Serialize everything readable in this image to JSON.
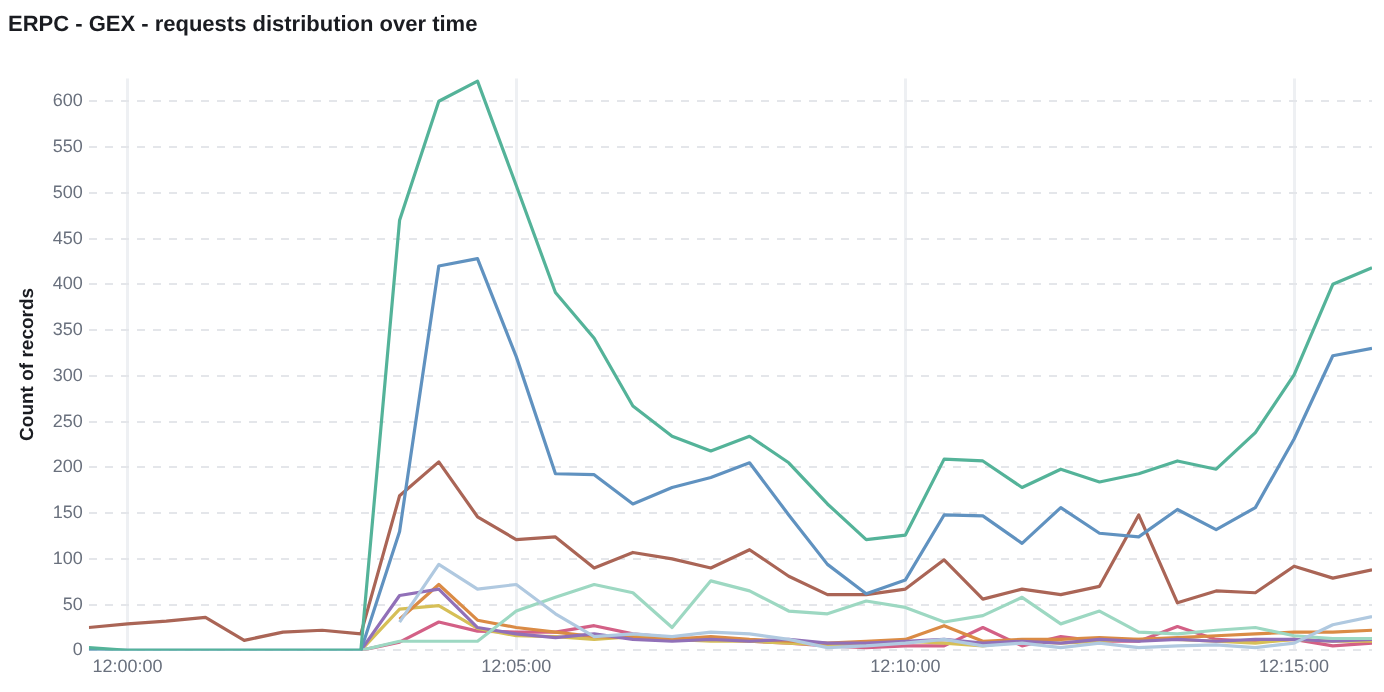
{
  "chart_data": {
    "type": "line",
    "title": "ERPC - GEX - requests distribution over time",
    "ylabel": "Count of records",
    "x": [
      11.9917,
      12,
      12.0083,
      12.0167,
      12.025,
      12.0333,
      12.0417,
      12.05,
      12.0583,
      12.0667,
      12.075,
      12.0833,
      12.0917,
      12.1,
      12.1083,
      12.1167,
      12.125,
      12.1333,
      12.1417,
      12.15,
      12.1583,
      12.1667,
      12.175,
      12.1833,
      12.1917,
      12.2,
      12.2083,
      12.2167,
      12.225,
      12.2333,
      12.2417,
      12.25,
      12.2583,
      12.2667
    ],
    "xlim": [
      11.9917,
      12.2667
    ],
    "xticks": [
      {
        "value": 12,
        "label": "12:00:00"
      },
      {
        "value": 12.0833,
        "label": "12:05:00"
      },
      {
        "value": 12.1667,
        "label": "12:10:00"
      },
      {
        "value": 12.25,
        "label": "12:15:00"
      }
    ],
    "ylim": [
      0,
      625
    ],
    "yticks": [
      0,
      50,
      100,
      150,
      200,
      250,
      300,
      350,
      400,
      450,
      500,
      550,
      600
    ],
    "grid": true,
    "legend": false,
    "marker": "none",
    "line_style": "solid",
    "series": [
      {
        "color": "#54b399",
        "values": [
          3,
          0,
          0,
          0,
          0,
          0,
          0,
          0,
          470,
          600,
          622,
          508,
          391,
          341,
          267,
          234,
          218,
          234,
          205,
          160,
          121,
          126,
          209,
          207,
          178,
          198,
          184,
          193,
          207,
          198,
          238,
          301,
          400,
          418
        ]
      },
      {
        "color": "#6092c0",
        "values": [
          0,
          0,
          0,
          0,
          0,
          0,
          0,
          0,
          130,
          420,
          428,
          321,
          193,
          192,
          160,
          178,
          189,
          205,
          148,
          94,
          62,
          77,
          148,
          147,
          117,
          156,
          128,
          124,
          154,
          132,
          156,
          231,
          322,
          330
        ]
      },
      {
        "color": "#aa6556",
        "values": [
          25,
          29,
          32,
          36,
          11,
          20,
          22,
          18,
          169,
          206,
          146,
          121,
          124,
          90,
          107,
          100,
          90,
          110,
          81,
          61,
          61,
          67,
          99,
          56,
          67,
          61,
          70,
          148,
          52,
          65,
          63,
          92,
          79,
          88
        ]
      },
      {
        "color": "#b0c9e0",
        "values": [
          null,
          null,
          null,
          null,
          null,
          null,
          null,
          null,
          31,
          94,
          67,
          72,
          40,
          15,
          18,
          15,
          20,
          18,
          12,
          3,
          5,
          8,
          12,
          5,
          8,
          3,
          8,
          3,
          5,
          6,
          3,
          8,
          28,
          37
        ]
      },
      {
        "color": "#9dd8c2",
        "values": [
          0,
          0,
          0,
          0,
          0,
          0,
          0,
          0,
          10,
          10,
          10,
          43,
          58,
          72,
          63,
          25,
          76,
          65,
          43,
          40,
          54,
          47,
          31,
          38,
          58,
          29,
          43,
          20,
          18,
          22,
          25,
          16,
          13,
          13
        ]
      },
      {
        "color": "#9170b8",
        "values": [
          null,
          null,
          null,
          null,
          null,
          null,
          null,
          0,
          60,
          67,
          25,
          18,
          14,
          18,
          12,
          10,
          12,
          10,
          12,
          8,
          8,
          10,
          12,
          8,
          10,
          8,
          12,
          10,
          12,
          10,
          12,
          12,
          10,
          12
        ]
      },
      {
        "color": "#da8b45",
        "values": [
          null,
          null,
          null,
          null,
          null,
          null,
          null,
          null,
          34,
          72,
          33,
          25,
          20,
          15,
          14,
          12,
          15,
          12,
          10,
          8,
          10,
          12,
          27,
          10,
          12,
          12,
          14,
          12,
          14,
          16,
          18,
          20,
          20,
          22
        ]
      },
      {
        "color": "#d6bf57",
        "values": [
          null,
          null,
          null,
          null,
          null,
          null,
          null,
          0,
          45,
          49,
          24,
          16,
          15,
          12,
          15,
          12,
          10,
          10,
          8,
          6,
          8,
          10,
          8,
          5,
          10,
          8,
          10,
          12,
          12,
          10,
          8,
          12,
          10,
          10
        ]
      },
      {
        "color": "#d36086",
        "values": [
          null,
          null,
          null,
          null,
          null,
          null,
          null,
          0,
          9,
          31,
          21,
          20,
          20,
          27,
          18,
          14,
          12,
          10,
          8,
          5,
          3,
          5,
          5,
          25,
          5,
          15,
          10,
          10,
          26,
          12,
          10,
          12,
          5,
          8
        ]
      }
    ]
  }
}
